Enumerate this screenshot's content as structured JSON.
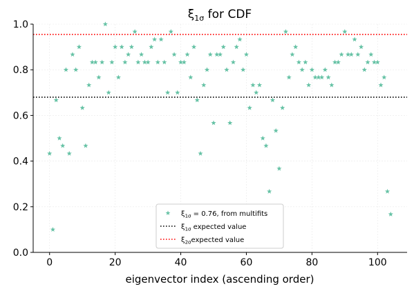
{
  "chart_data": {
    "type": "scatter",
    "title": "ξ1σ for CDF",
    "xlabel": "eigenvector index (ascending order)",
    "ylabel": "",
    "xlim": [
      -5,
      109
    ],
    "ylim": [
      0.0,
      1.0
    ],
    "xticks": [
      0,
      20,
      40,
      60,
      80,
      100
    ],
    "yticks": [
      0.0,
      0.2,
      0.4,
      0.6,
      0.8,
      1.0
    ],
    "xtick_labels": [
      "0",
      "20",
      "40",
      "60",
      "80",
      "100"
    ],
    "ytick_labels": [
      "0.0",
      "0.2",
      "0.4",
      "0.6",
      "0.8",
      "1.0"
    ],
    "grid": true,
    "legend_position": "lower-center",
    "marker_color": "#66c2a5",
    "series": [
      {
        "name": "ξ1σ = 0.76, from multifits",
        "marker": "star",
        "x": [
          0,
          1,
          2,
          3,
          4,
          5,
          6,
          7,
          8,
          9,
          10,
          11,
          12,
          13,
          14,
          15,
          16,
          17,
          18,
          19,
          20,
          21,
          22,
          23,
          24,
          25,
          26,
          27,
          28,
          29,
          30,
          31,
          32,
          33,
          34,
          35,
          36,
          37,
          38,
          39,
          40,
          41,
          42,
          43,
          44,
          45,
          46,
          47,
          48,
          49,
          50,
          51,
          52,
          53,
          54,
          55,
          56,
          57,
          58,
          59,
          60,
          61,
          62,
          63,
          64,
          65,
          66,
          67,
          68,
          69,
          70,
          71,
          72,
          73,
          74,
          75,
          76,
          77,
          78,
          79,
          80,
          81,
          82,
          83,
          84,
          85,
          86,
          87,
          88,
          89,
          90,
          91,
          92,
          93,
          94,
          95,
          96,
          97,
          98,
          99,
          100,
          101,
          102,
          103,
          104
        ],
        "y": [
          0.433,
          0.1,
          0.667,
          0.5,
          0.467,
          0.8,
          0.433,
          0.867,
          0.8,
          0.9,
          0.633,
          0.467,
          0.733,
          0.833,
          0.833,
          0.767,
          0.833,
          1.0,
          0.7,
          0.833,
          0.9,
          0.767,
          0.9,
          0.833,
          0.867,
          0.9,
          0.967,
          0.833,
          0.867,
          0.833,
          0.833,
          0.9,
          0.933,
          0.833,
          0.933,
          0.833,
          0.7,
          0.967,
          0.867,
          0.7,
          0.833,
          0.833,
          0.867,
          0.767,
          0.9,
          0.667,
          0.433,
          0.733,
          0.8,
          0.867,
          0.567,
          0.867,
          0.867,
          0.9,
          0.8,
          0.567,
          0.833,
          0.9,
          0.933,
          0.8,
          0.867,
          0.633,
          0.733,
          0.7,
          0.733,
          0.5,
          0.467,
          0.267,
          0.667,
          0.533,
          0.367,
          0.633,
          0.967,
          0.767,
          0.867,
          0.9,
          0.833,
          0.8,
          0.833,
          0.733,
          0.8,
          0.767,
          0.767,
          0.767,
          0.8,
          0.767,
          0.733,
          0.833,
          0.833,
          0.867,
          0.967,
          0.867,
          0.867,
          0.933,
          0.867,
          0.9,
          0.8,
          0.833,
          0.867,
          0.833,
          0.833,
          0.733,
          0.767,
          0.267,
          0.167
        ]
      },
      {
        "name": "ξ1σ expected value",
        "type": "hline",
        "y": 0.68,
        "color": "#000000",
        "style": "dotted"
      },
      {
        "name": "ξ2σexpected value",
        "type": "hline",
        "y": 0.955,
        "color": "#ff0000",
        "style": "dotted"
      }
    ]
  }
}
